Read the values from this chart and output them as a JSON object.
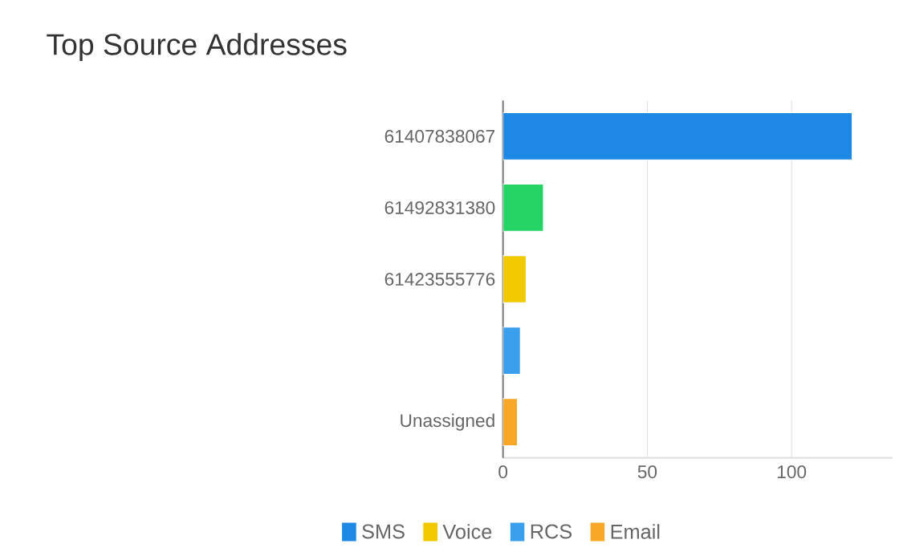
{
  "chart_data": {
    "type": "bar",
    "orientation": "horizontal",
    "title": "Top Source Addresses",
    "categories": [
      "61407838067",
      "61492831380",
      "61423555776",
      null,
      "Unassigned"
    ],
    "series": [
      {
        "name": "SMS",
        "color": "#1e88e5",
        "values": [
          121,
          null,
          null,
          null,
          null
        ]
      },
      {
        "color": "#26d466",
        "values": [
          null,
          14,
          null,
          null,
          null
        ]
      },
      {
        "name": "Voice",
        "color": "#f2c800",
        "values": [
          null,
          null,
          8,
          null,
          null
        ]
      },
      {
        "name": "RCS",
        "color": "#3aa0ee",
        "values": [
          null,
          null,
          null,
          6,
          null
        ]
      },
      {
        "name": "Email",
        "color": "#f8a726",
        "values": [
          null,
          null,
          null,
          null,
          5
        ]
      }
    ],
    "xlim": [
      0,
      135
    ],
    "xticks": [
      0,
      50,
      100
    ],
    "grid": "x",
    "legend": "bottom"
  }
}
